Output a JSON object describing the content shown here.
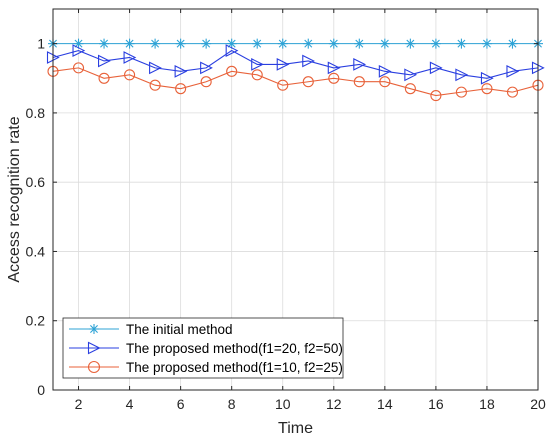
{
  "chart_data": {
    "type": "line",
    "title": "",
    "xlabel": "Time",
    "ylabel": "Access recognition rate",
    "xlim": [
      1,
      20
    ],
    "ylim": [
      0,
      1.1
    ],
    "xticks": [
      2,
      4,
      6,
      8,
      10,
      12,
      14,
      16,
      18,
      20
    ],
    "yticks": [
      0,
      0.2,
      0.4,
      0.6,
      0.8,
      1
    ],
    "ytick_labels": [
      "0",
      "0.2",
      "0.4",
      "0.6",
      "0.8",
      "1"
    ],
    "grid": true,
    "legend_position": "bottom-left",
    "x": [
      1,
      2,
      3,
      4,
      5,
      6,
      7,
      8,
      9,
      10,
      11,
      12,
      13,
      14,
      15,
      16,
      17,
      18,
      19,
      20
    ],
    "series": [
      {
        "name": "The initial method",
        "color": "#2ea3d6",
        "marker": "asterisk",
        "values": [
          1,
          1,
          1,
          1,
          1,
          1,
          1,
          1,
          1,
          1,
          1,
          1,
          1,
          1,
          1,
          1,
          1,
          1,
          1,
          1
        ]
      },
      {
        "name": "The proposed method(f1=20, f2=50)",
        "color": "#2a3fe0",
        "marker": "triangle-right",
        "values": [
          0.96,
          0.98,
          0.95,
          0.96,
          0.93,
          0.92,
          0.93,
          0.98,
          0.94,
          0.94,
          0.95,
          0.93,
          0.94,
          0.92,
          0.91,
          0.93,
          0.91,
          0.9,
          0.92,
          0.93
        ]
      },
      {
        "name": "The proposed method(f1=10, f2=25)",
        "color": "#e8623a",
        "marker": "circle",
        "values": [
          0.92,
          0.93,
          0.9,
          0.91,
          0.88,
          0.87,
          0.89,
          0.92,
          0.91,
          0.88,
          0.89,
          0.9,
          0.89,
          0.89,
          0.87,
          0.85,
          0.86,
          0.87,
          0.86,
          0.88
        ]
      }
    ]
  }
}
